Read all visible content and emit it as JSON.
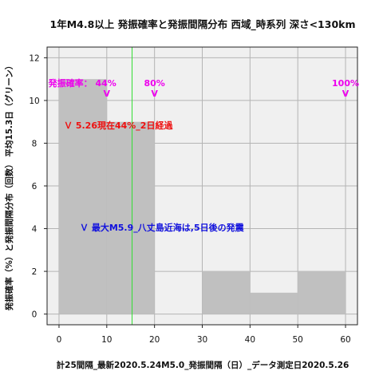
{
  "chart_data": {
    "type": "bar",
    "title": "1年M4.8以上 発振確率と発振間隔分布 西域_時系列 深さ<130km",
    "xlabel": "計25間隔_最新2020.5.24M5.0_発振間隔（日）_データ測定日2020.5.26",
    "ylabel": "発振確率（%）と発振間隔分布（回数） 平均15.3日（グリーン）",
    "xlim": [
      -2.5,
      62.5
    ],
    "ylim": [
      -0.5,
      12.5
    ],
    "xticks": [
      "0",
      "10",
      "20",
      "30",
      "40",
      "50",
      "60"
    ],
    "yticks": [
      "0",
      "2",
      "4",
      "6",
      "8",
      "10",
      "12"
    ],
    "bins": [
      {
        "start": 0,
        "end": 10,
        "count": 11
      },
      {
        "start": 10,
        "end": 20,
        "count": 9
      },
      {
        "start": 20,
        "end": 30,
        "count": 0
      },
      {
        "start": 30,
        "end": 40,
        "count": 2
      },
      {
        "start": 40,
        "end": 50,
        "count": 1
      },
      {
        "start": 50,
        "end": 60,
        "count": 2
      }
    ],
    "mean_line_x": 15.3,
    "grid": true,
    "colors": {
      "bar": "#c0c0c0",
      "background": "#f0f0f0",
      "mean_line": "#33dd33",
      "probability": "#ee00ee",
      "status": "#ee1111",
      "note": "#1111dd"
    },
    "annotations": {
      "prob_10": {
        "text": "発振確率： 44%",
        "arrow": "V",
        "x": 10
      },
      "prob_20": {
        "text": "80%",
        "arrow": "V",
        "x": 20
      },
      "prob_60": {
        "text": "100%",
        "arrow": "V",
        "x": 60
      },
      "status": "Ｖ 5.26現在44%_2日経過",
      "note": "Ｖ 最大M5.9_八丈島近海は,5日後の発震"
    }
  }
}
